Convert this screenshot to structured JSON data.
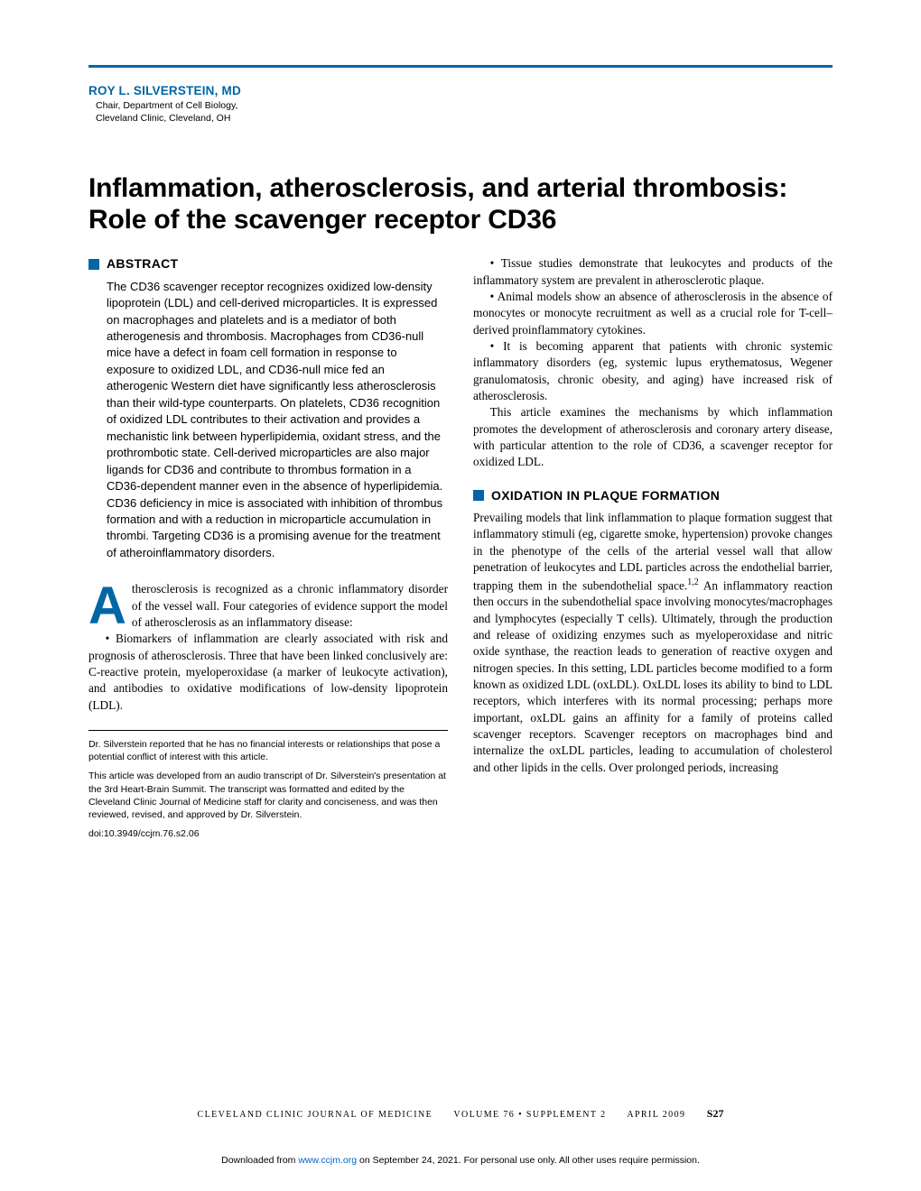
{
  "colors": {
    "accent": "#0066a4",
    "text": "#000000",
    "background": "#ffffff",
    "link": "#0066cc"
  },
  "author": {
    "name": "ROY L. SILVERSTEIN, MD",
    "title_line1": "Chair, Department of Cell Biology,",
    "title_line2": "Cleveland Clinic, Cleveland, OH"
  },
  "headline": "Inflammation, atherosclerosis, and arterial thrombosis: Role of the scavenger receptor CD36",
  "abstract": {
    "label": "ABSTRACT",
    "text": "The CD36 scavenger receptor recognizes oxidized low-density lipoprotein (LDL) and cell-derived microparticles. It is expressed on macrophages and platelets and is a mediator of both atherogenesis and thrombosis. Macrophages from CD36-null mice have a defect in foam cell formation in response to exposure to oxidized LDL, and CD36-null mice fed an atherogenic Western diet have significantly less atherosclerosis than their wild-type counterparts. On platelets, CD36 recognition of oxidized LDL contributes to their activation and provides a mechanistic link between hyperlipidemia, oxidant stress, and the prothrombotic state. Cell-derived microparticles are also major ligands for CD36 and contribute to thrombus formation in a CD36-dependent manner even in the absence of hyperlipidemia. CD36 deficiency in mice is associated with inhibition of thrombus formation and with a reduction in microparticle accumulation in thrombi. Targeting CD36 is a promising avenue for the treatment of atheroinflammatory disorders."
  },
  "left_body": {
    "dropcap": "A",
    "para1": "therosclerosis is recognized as a chronic inflammatory disorder of the vessel wall. Four categories of evidence support the model of atherosclerosis as an inflammatory disease:",
    "bullet1": "• Biomarkers of inflammation are clearly associated with risk and prognosis of atherosclerosis. Three that have been linked conclusively are: C-reactive protein, myeloperoxidase (a marker of leukocyte activation), and antibodies to oxidative modifications of low-density lipoprotein (LDL)."
  },
  "footnotes": {
    "coi": "Dr. Silverstein reported that he has no financial interests or relationships that pose a potential conflict of interest with this article.",
    "provenance": "This article was developed from an audio transcript of Dr. Silverstein's presentation at the 3rd Heart-Brain Summit. The transcript was formatted and edited by the Cleveland Clinic Journal of Medicine staff for clarity and conciseness, and was then reviewed, revised, and approved by Dr. Silverstein.",
    "doi": "doi:10.3949/ccjm.76.s2.06"
  },
  "right": {
    "bullet1": "• Tissue studies demonstrate that leukocytes and products of the inflammatory system are prevalent in atherosclerotic plaque.",
    "bullet2": "• Animal models show an absence of atherosclerosis in the absence of monocytes or monocyte recruitment as well as a crucial role for T-cell–derived proinflammatory cytokines.",
    "bullet3": "• It is becoming apparent that patients with chronic systemic inflammatory disorders (eg, systemic lupus erythematosus, Wegener granulomatosis, chronic obesity, and aging) have increased risk of atherosclerosis.",
    "trans": "This article examines the mechanisms by which inflammation promotes the development of atherosclerosis and coronary artery disease, with particular attention to the role of CD36, a scavenger receptor for oxidized LDL.",
    "section2_label": "OXIDATION IN PLAQUE FORMATION",
    "section2_p1a": "Prevailing models that link inflammation to plaque formation suggest that inflammatory stimuli (eg, cigarette smoke, hypertension) provoke changes in the phenotype of the cells of the arterial vessel wall that allow penetration of leukocytes and LDL particles across the endothelial barrier, trapping them in the subendothelial space.",
    "section2_sup": "1,2",
    "section2_p1b": " An inflammatory reaction then occurs in the subendothelial space involving monocytes/macrophages and lymphocytes (especially T cells). Ultimately, through the production and release of oxidizing enzymes such as myeloperoxidase and nitric oxide synthase, the reaction leads to generation of reactive oxygen and nitrogen species. In this setting, LDL particles become modified to a form known as oxidized LDL (oxLDL). OxLDL loses its ability to bind to LDL receptors, which interferes with its normal processing; perhaps more important, oxLDL gains an affinity for a family of proteins called scavenger receptors. Scavenger receptors on macrophages bind and internalize the oxLDL particles, leading to accumulation of cholesterol and other lipids in the cells. Over prolonged periods, increasing"
  },
  "runfoot": {
    "journal": "CLEVELAND CLINIC JOURNAL OF MEDICINE",
    "vol": "VOLUME 76 • SUPPLEMENT 2",
    "date": "APRIL 2009",
    "page": "S27"
  },
  "download": {
    "prefix": "Downloaded from ",
    "url": "www.ccjm.org",
    "suffix": " on September 24, 2021. For personal use only. All other uses require permission."
  }
}
